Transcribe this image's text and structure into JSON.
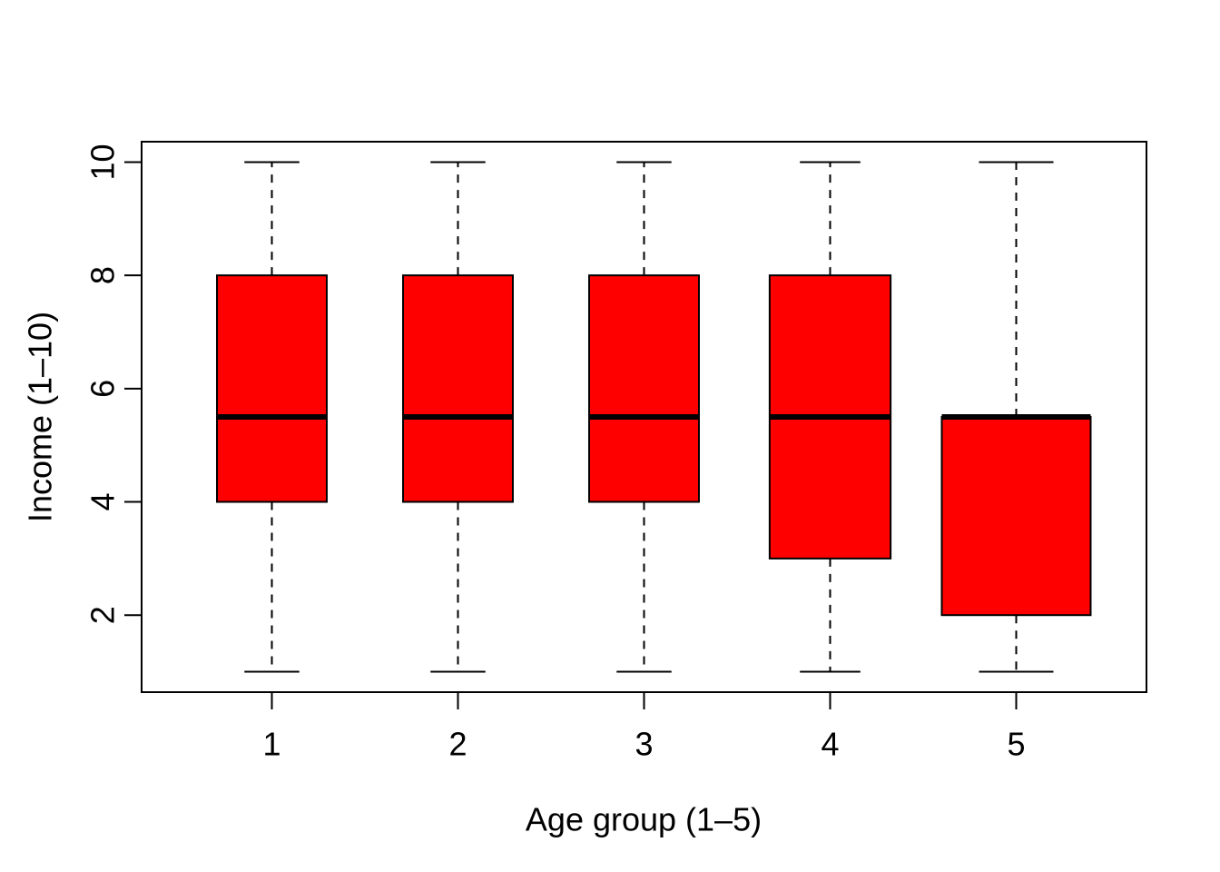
{
  "chart_data": {
    "type": "boxplot",
    "title": "",
    "xlabel": "Age group (1–5)",
    "ylabel": "Income (1–10)",
    "categories": [
      "1",
      "2",
      "3",
      "4",
      "5"
    ],
    "yticks": [
      2,
      4,
      6,
      8,
      10
    ],
    "ylim": [
      1,
      10
    ],
    "xlim": [
      0.5,
      5.5
    ],
    "grid": false,
    "legend": false,
    "groups": [
      {
        "category": "1",
        "whisker_low": 1,
        "q1": 4,
        "median": 5.5,
        "q3": 8,
        "whisker_high": 10,
        "width_units": 0.59
      },
      {
        "category": "2",
        "whisker_low": 1,
        "q1": 4,
        "median": 5.5,
        "q3": 8,
        "whisker_high": 10,
        "width_units": 0.59
      },
      {
        "category": "3",
        "whisker_low": 1,
        "q1": 4,
        "median": 5.5,
        "q3": 8,
        "whisker_high": 10,
        "width_units": 0.59
      },
      {
        "category": "4",
        "whisker_low": 1,
        "q1": 3,
        "median": 5.5,
        "q3": 8,
        "whisker_high": 10,
        "width_units": 0.65
      },
      {
        "category": "5",
        "whisker_low": 1,
        "q1": 2,
        "median": 5.5,
        "q3": 5.5,
        "whisker_high": 10,
        "width_units": 0.8
      }
    ],
    "colors": {
      "box_fill": "#FF0000",
      "line": "#000000",
      "background": "#FFFFFF"
    }
  }
}
